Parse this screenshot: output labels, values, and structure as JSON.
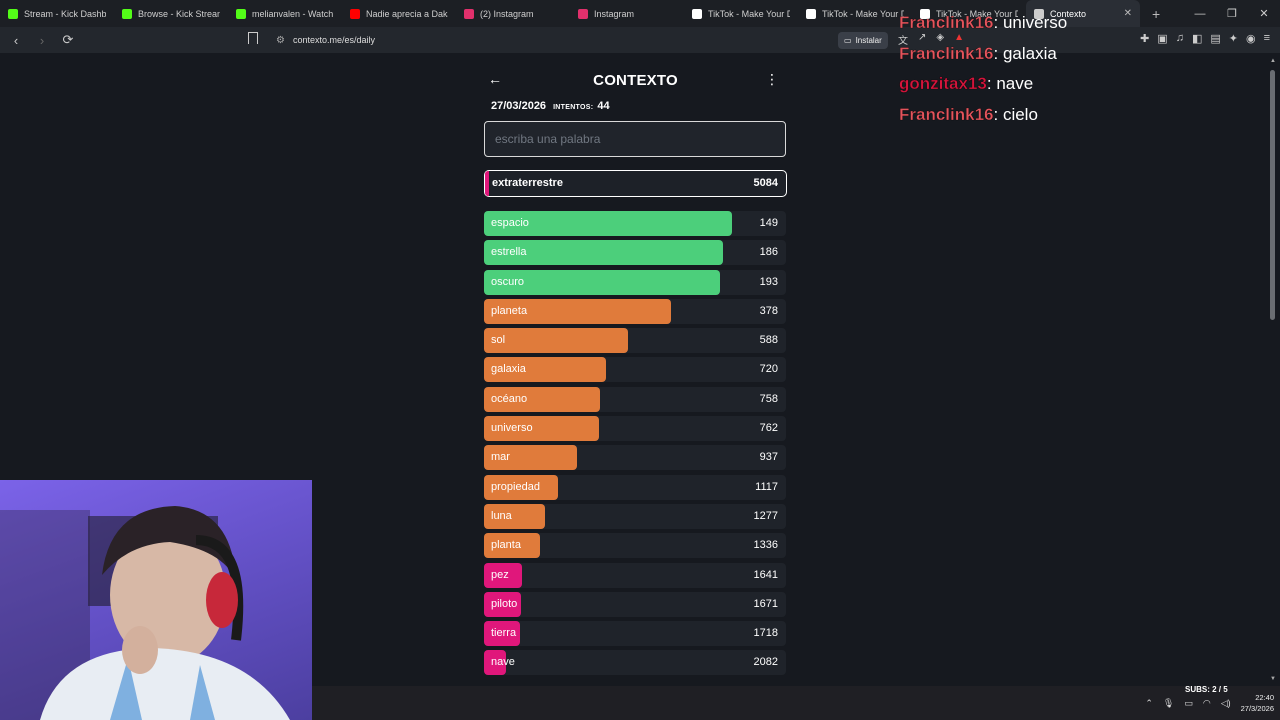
{
  "browser": {
    "tabs": [
      {
        "label": "Stream - Kick Dashboard",
        "icon": "kick-icon",
        "color": "#53fc18"
      },
      {
        "label": "Browse - Kick Streaming",
        "icon": "kick-icon",
        "color": "#53fc18"
      },
      {
        "label": "melianvalen - Watch the",
        "icon": "kick-icon",
        "color": "#53fc18"
      },
      {
        "label": "Nadie aprecia a Daka",
        "icon": "youtube-icon",
        "color": "#ff0000"
      },
      {
        "label": "(2) Instagram",
        "icon": "instagram-icon",
        "color": "#e1306c"
      },
      {
        "label": "Instagram",
        "icon": "instagram-icon",
        "color": "#e1306c"
      },
      {
        "label": "TikTok - Make Your Day",
        "icon": "tiktok-icon",
        "color": "#ffffff"
      },
      {
        "label": "TikTok - Make Your Day",
        "icon": "tiktok-icon",
        "color": "#ffffff"
      },
      {
        "label": "TikTok - Make Your Day",
        "icon": "tiktok-icon",
        "color": "#ffffff"
      },
      {
        "label": "Contexto",
        "icon": "contexto-icon",
        "color": "#cccccc",
        "active": true
      }
    ],
    "url": "contexto.me/es/daily",
    "install_label": "Instalar"
  },
  "game": {
    "title": "CONTEXTO",
    "date": "27/03/2026",
    "attempts_label": "INTENTOS:",
    "attempts": "44",
    "input_placeholder": "escriba una palabra",
    "current": {
      "word": "extraterrestre",
      "rank": "5084"
    },
    "colors": {
      "green": "#4ccf7b",
      "orange": "#e07b3b",
      "pink": "#e0177b"
    },
    "guesses": [
      {
        "word": "espacio",
        "rank": "149",
        "fill": 0.82,
        "color": "green"
      },
      {
        "word": "estrella",
        "rank": "186",
        "fill": 0.79,
        "color": "green"
      },
      {
        "word": "oscuro",
        "rank": "193",
        "fill": 0.78,
        "color": "green"
      },
      {
        "word": "planeta",
        "rank": "378",
        "fill": 0.62,
        "color": "orange"
      },
      {
        "word": "sol",
        "rank": "588",
        "fill": 0.477,
        "color": "orange"
      },
      {
        "word": "galaxia",
        "rank": "720",
        "fill": 0.404,
        "color": "orange"
      },
      {
        "word": "océano",
        "rank": "758",
        "fill": 0.384,
        "color": "orange"
      },
      {
        "word": "universo",
        "rank": "762",
        "fill": 0.382,
        "color": "orange"
      },
      {
        "word": "mar",
        "rank": "937",
        "fill": 0.308,
        "color": "orange"
      },
      {
        "word": "propiedad",
        "rank": "1117",
        "fill": 0.245,
        "color": "orange"
      },
      {
        "word": "luna",
        "rank": "1277",
        "fill": 0.202,
        "color": "orange"
      },
      {
        "word": "planta",
        "rank": "1336",
        "fill": 0.185,
        "color": "orange"
      },
      {
        "word": "pez",
        "rank": "1641",
        "fill": 0.126,
        "color": "pink"
      },
      {
        "word": "piloto",
        "rank": "1671",
        "fill": 0.123,
        "color": "pink"
      },
      {
        "word": "tierra",
        "rank": "1718",
        "fill": 0.119,
        "color": "pink"
      },
      {
        "word": "nave",
        "rank": "2082",
        "fill": 0.073,
        "color": "pink"
      }
    ]
  },
  "chat": [
    {
      "user": "Franclink16",
      "color": "#e4545c",
      "message": "universo"
    },
    {
      "user": "Franclink16",
      "color": "#e4545c",
      "message": "galaxia"
    },
    {
      "user": "gonzitax13",
      "color": "#d4153c",
      "message": "nave"
    },
    {
      "user": "Franclink16",
      "color": "#e4545c",
      "message": "cielo"
    }
  ],
  "overlay": {
    "subs": "SUBS: 2 / 5",
    "time": "22:40",
    "date": "27/3/2026"
  }
}
